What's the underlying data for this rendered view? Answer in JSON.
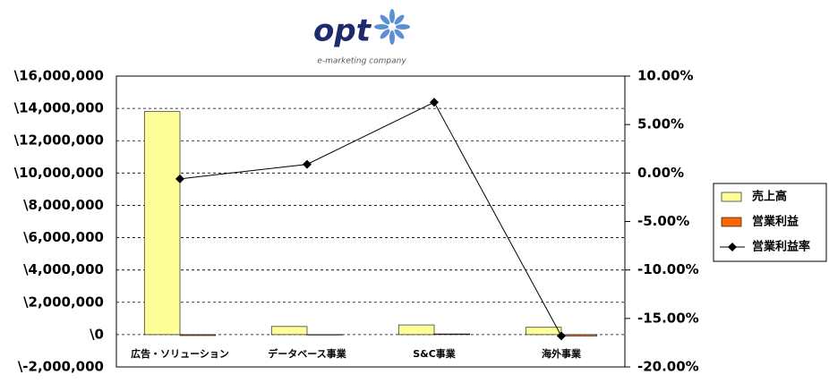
{
  "logo": {
    "text": "opt",
    "tagline": "e-marketing company"
  },
  "chart_data": {
    "type": "bar-line",
    "categories": [
      "広告・ソリューション",
      "データベース事業",
      "S&C事業",
      "海外事業"
    ],
    "series": [
      {
        "name": "売上高",
        "type": "bar",
        "color": "#ffff99",
        "values": [
          13800000,
          500000,
          600000,
          450000
        ]
      },
      {
        "name": "営業利益",
        "type": "bar",
        "color": "#ff6600",
        "values": [
          -60000,
          5000,
          45000,
          -80000
        ]
      },
      {
        "name": "営業利益率",
        "type": "line",
        "axis": "y2",
        "color": "#000000",
        "values": [
          -0.6,
          0.9,
          7.3,
          -16.8
        ]
      }
    ],
    "ylim": [
      -2000000,
      16000000
    ],
    "yticks": [
      {
        "value": -2000000,
        "label": "\\-2,000,000",
        "color": "#ff0000"
      },
      {
        "value": 0,
        "label": "\\0"
      },
      {
        "value": 2000000,
        "label": "\\2,000,000"
      },
      {
        "value": 4000000,
        "label": "\\4,000,000"
      },
      {
        "value": 6000000,
        "label": "\\6,000,000"
      },
      {
        "value": 8000000,
        "label": "\\8,000,000"
      },
      {
        "value": 10000000,
        "label": "\\10,000,000"
      },
      {
        "value": 12000000,
        "label": "\\12,000,000"
      },
      {
        "value": 14000000,
        "label": "\\14,000,000"
      },
      {
        "value": 16000000,
        "label": "\\16,000,000"
      }
    ],
    "y2lim": [
      -20,
      10
    ],
    "y2ticks": [
      {
        "value": -20,
        "label": "-20.00%"
      },
      {
        "value": -15,
        "label": "-15.00%"
      },
      {
        "value": -10,
        "label": "-10.00%"
      },
      {
        "value": -5,
        "label": "-5.00%"
      },
      {
        "value": 0,
        "label": "0.00%"
      },
      {
        "value": 5,
        "label": "5.00%"
      },
      {
        "value": 10,
        "label": "10.00%"
      }
    ],
    "grid": true,
    "legend": "right"
  }
}
